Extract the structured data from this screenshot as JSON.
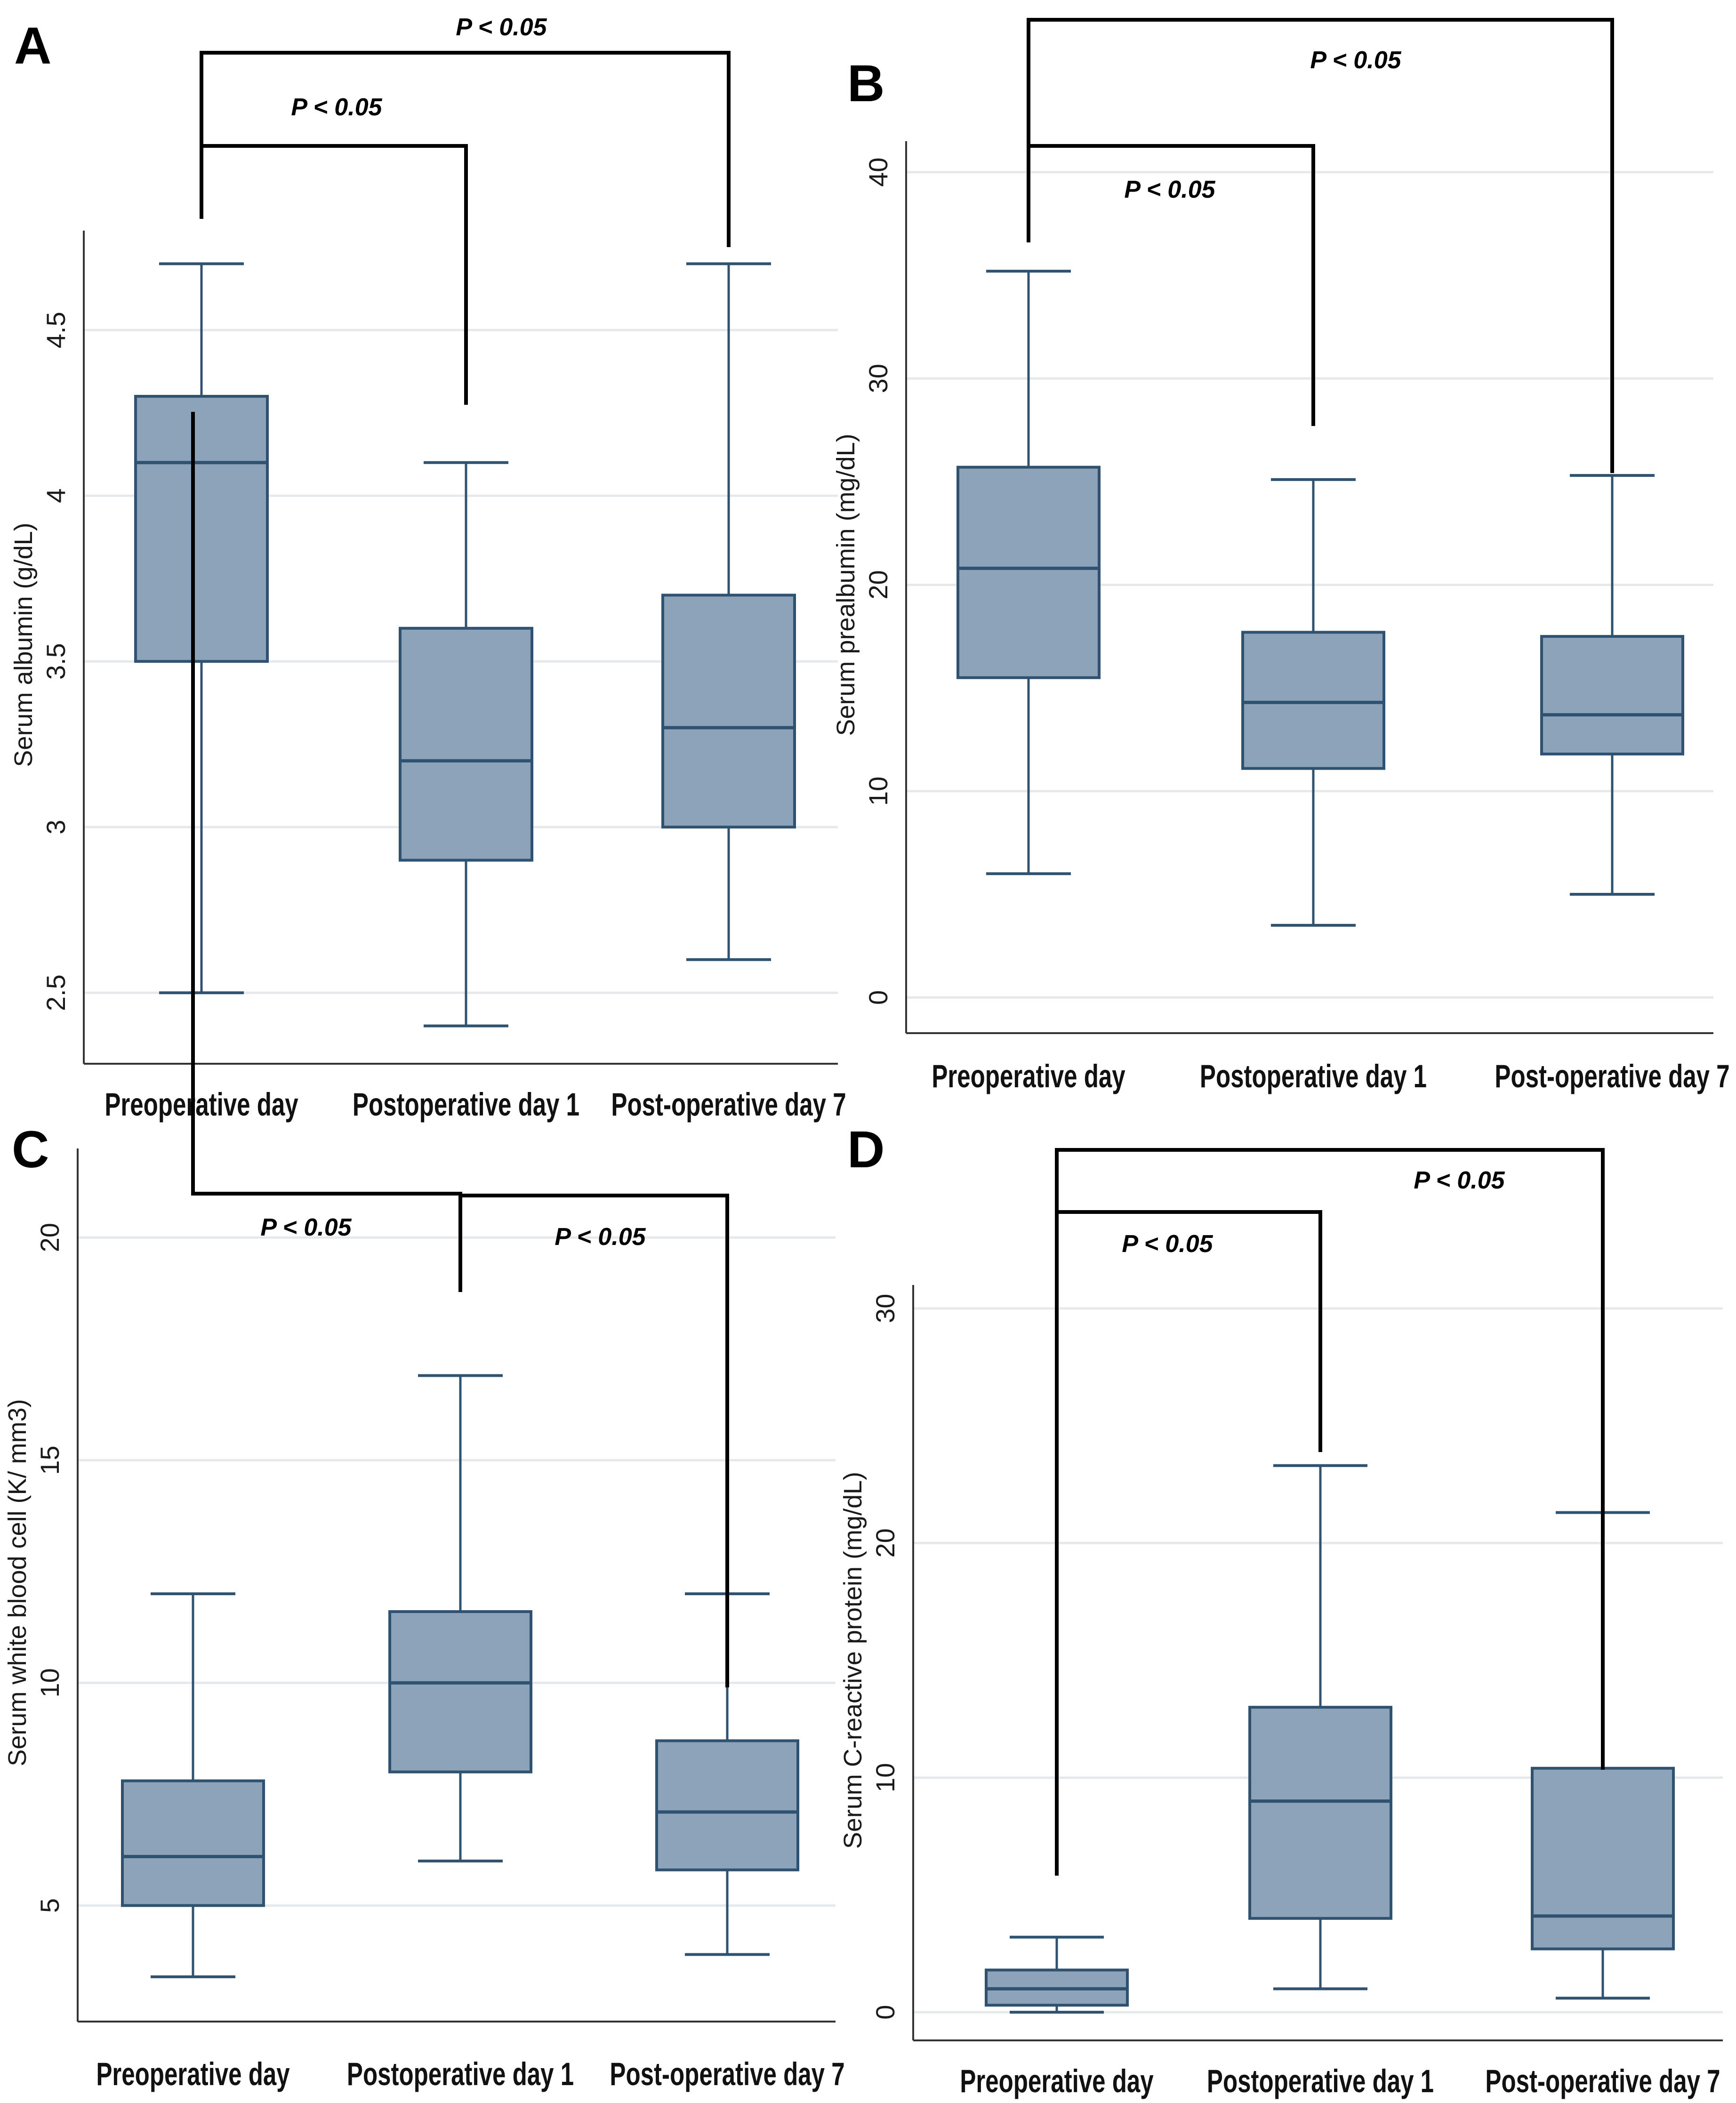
{
  "chart_data": [
    {
      "panel": "A",
      "type": "box",
      "ylabel": "Serum albumin (g/dL)",
      "ylim": [
        2.3,
        4.8
      ],
      "yticks": [
        "2.5",
        "3",
        "3.5",
        "4",
        "4.5"
      ],
      "grid": true,
      "categories": [
        "Preoperative day",
        "Postoperative day 1",
        "Post-operative day 7"
      ],
      "boxes": [
        {
          "min": 2.5,
          "q1": 3.5,
          "median": 4.1,
          "q3": 4.3,
          "max": 4.7
        },
        {
          "min": 2.4,
          "q1": 2.9,
          "median": 3.2,
          "q3": 3.6,
          "max": 4.1
        },
        {
          "min": 2.6,
          "q1": 3.0,
          "median": 3.3,
          "q3": 3.7,
          "max": 4.7
        }
      ],
      "significance": [
        {
          "from": 0,
          "to": 1,
          "label": "P < 0.05"
        },
        {
          "from": 0,
          "to": 2,
          "label": "P < 0.05"
        }
      ]
    },
    {
      "panel": "B",
      "type": "box",
      "ylabel": "Serum prealbumin (mg/dL)",
      "ylim": [
        -1.5,
        41.5
      ],
      "yticks": [
        "0",
        "10",
        "20",
        "30",
        "40"
      ],
      "grid": true,
      "categories": [
        "Preoperative day",
        "Postoperative day 1",
        "Post-operative day 7"
      ],
      "boxes": [
        {
          "min": 6.0,
          "q1": 15.5,
          "median": 20.8,
          "q3": 25.7,
          "max": 35.2
        },
        {
          "min": 3.5,
          "q1": 11.1,
          "median": 14.3,
          "q3": 17.7,
          "max": 25.1
        },
        {
          "min": 5.0,
          "q1": 11.8,
          "median": 13.7,
          "q3": 17.5,
          "max": 25.3
        }
      ],
      "significance": [
        {
          "from": 0,
          "to": 1,
          "label": "P < 0.05"
        },
        {
          "from": 0,
          "to": 2,
          "label": "P < 0.05"
        }
      ]
    },
    {
      "panel": "C",
      "type": "box",
      "ylabel": "Serum white blood cell (K/ mm3)",
      "ylim": [
        2.5,
        22
      ],
      "yticks": [
        "5",
        "10",
        "15",
        "20"
      ],
      "grid": true,
      "categories": [
        "Preoperative day",
        "Postoperative day 1",
        "Post-operative day 7"
      ],
      "boxes": [
        {
          "min": 3.4,
          "q1": 5.0,
          "median": 6.1,
          "q3": 7.8,
          "max": 12.0
        },
        {
          "min": 6.0,
          "q1": 8.0,
          "median": 10.0,
          "q3": 11.6,
          "max": 16.9
        },
        {
          "min": 3.9,
          "q1": 5.8,
          "median": 7.1,
          "q3": 8.7,
          "max": 12.0
        }
      ],
      "significance": [
        {
          "from": 0,
          "to": 1,
          "label": "P < 0.05"
        },
        {
          "from": 1,
          "to": 2,
          "label": "P < 0.05"
        }
      ]
    },
    {
      "panel": "D",
      "type": "box",
      "ylabel": "Serum C-reactive protein (mg/dL)",
      "ylim": [
        -1,
        31
      ],
      "yticks": [
        "0",
        "10",
        "20",
        "30"
      ],
      "grid": true,
      "categories": [
        "Preoperative day",
        "Postoperative day 1",
        "Post-operative day 7"
      ],
      "boxes": [
        {
          "min": 0.0,
          "q1": 0.3,
          "median": 1.0,
          "q3": 1.8,
          "max": 3.2
        },
        {
          "min": 1.0,
          "q1": 4.0,
          "median": 9.0,
          "q3": 13.0,
          "max": 23.3
        },
        {
          "min": 0.6,
          "q1": 2.7,
          "median": 4.1,
          "q3": 10.4,
          "max": 21.3
        }
      ],
      "significance": [
        {
          "from": 0,
          "to": 1,
          "label": "P < 0.05"
        },
        {
          "from": 0,
          "to": 2,
          "label": "P < 0.05"
        }
      ]
    }
  ],
  "style": {
    "box_fill": "#8DA3B9",
    "box_stroke": "#2F5270",
    "grid_color": "#E6E9EC",
    "axis_color": "#333333",
    "bracket_color": "#000000"
  }
}
